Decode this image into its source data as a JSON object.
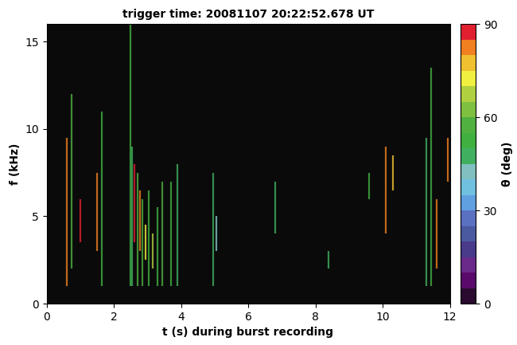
{
  "chart_data": {
    "type": "spectrogram",
    "title": "trigger time: 20081107 20:22:52.678 UT",
    "x_label": "t (s) during burst recording",
    "y_label": "f (kHz)",
    "colorbar_label": "θ (deg)",
    "xlim": [
      0,
      12
    ],
    "xticks": [
      0,
      2,
      4,
      6,
      8,
      10,
      12
    ],
    "ylim": [
      0,
      16
    ],
    "yticks": [
      0,
      5,
      10,
      15
    ],
    "colorbar_range": [
      0,
      90
    ],
    "colorbar_ticks": [
      0,
      30,
      60,
      90
    ],
    "streaks": [
      {
        "t": 0.6,
        "f": [
          1.0,
          9.5
        ],
        "theta": 80
      },
      {
        "t": 0.75,
        "f": [
          2.0,
          12.0
        ],
        "theta": 55
      },
      {
        "t": 1.0,
        "f": [
          3.5,
          6.0
        ],
        "theta": 85
      },
      {
        "t": 1.5,
        "f": [
          3.0,
          7.5
        ],
        "theta": 82
      },
      {
        "t": 1.65,
        "f": [
          1.0,
          11.0
        ],
        "theta": 50
      },
      {
        "t": 2.5,
        "f": [
          1.0,
          16.0
        ],
        "theta": 52
      },
      {
        "t": 2.55,
        "f": [
          1.0,
          9.0
        ],
        "theta": 45
      },
      {
        "t": 2.62,
        "f": [
          3.5,
          8.0
        ],
        "theta": 85
      },
      {
        "t": 2.7,
        "f": [
          1.0,
          7.5
        ],
        "theta": 55
      },
      {
        "t": 2.78,
        "f": [
          3.0,
          6.5
        ],
        "theta": 80
      },
      {
        "t": 2.85,
        "f": [
          1.0,
          6.0
        ],
        "theta": 58
      },
      {
        "t": 2.95,
        "f": [
          2.5,
          4.5
        ],
        "theta": 70
      },
      {
        "t": 3.05,
        "f": [
          1.0,
          6.5
        ],
        "theta": 52
      },
      {
        "t": 3.15,
        "f": [
          2.0,
          4.0
        ],
        "theta": 68
      },
      {
        "t": 3.3,
        "f": [
          1.0,
          5.5
        ],
        "theta": 50
      },
      {
        "t": 3.45,
        "f": [
          1.0,
          7.0
        ],
        "theta": 55
      },
      {
        "t": 3.7,
        "f": [
          1.0,
          7.0
        ],
        "theta": 50
      },
      {
        "t": 3.9,
        "f": [
          1.0,
          8.0
        ],
        "theta": 48
      },
      {
        "t": 4.95,
        "f": [
          1.0,
          7.5
        ],
        "theta": 45
      },
      {
        "t": 5.05,
        "f": [
          3.0,
          5.0
        ],
        "theta": 40
      },
      {
        "t": 6.8,
        "f": [
          4.0,
          7.0
        ],
        "theta": 45
      },
      {
        "t": 8.4,
        "f": [
          2.0,
          3.0
        ],
        "theta": 45
      },
      {
        "t": 9.6,
        "f": [
          6.0,
          7.5
        ],
        "theta": 50
      },
      {
        "t": 10.1,
        "f": [
          4.0,
          9.0
        ],
        "theta": 82
      },
      {
        "t": 10.3,
        "f": [
          6.5,
          8.5
        ],
        "theta": 78
      },
      {
        "t": 11.3,
        "f": [
          1.0,
          9.5
        ],
        "theta": 45
      },
      {
        "t": 11.45,
        "f": [
          1.0,
          13.5
        ],
        "theta": 50
      },
      {
        "t": 11.6,
        "f": [
          2.0,
          6.0
        ],
        "theta": 80
      },
      {
        "t": 11.95,
        "f": [
          7.0,
          9.5
        ],
        "theta": 82
      }
    ]
  }
}
